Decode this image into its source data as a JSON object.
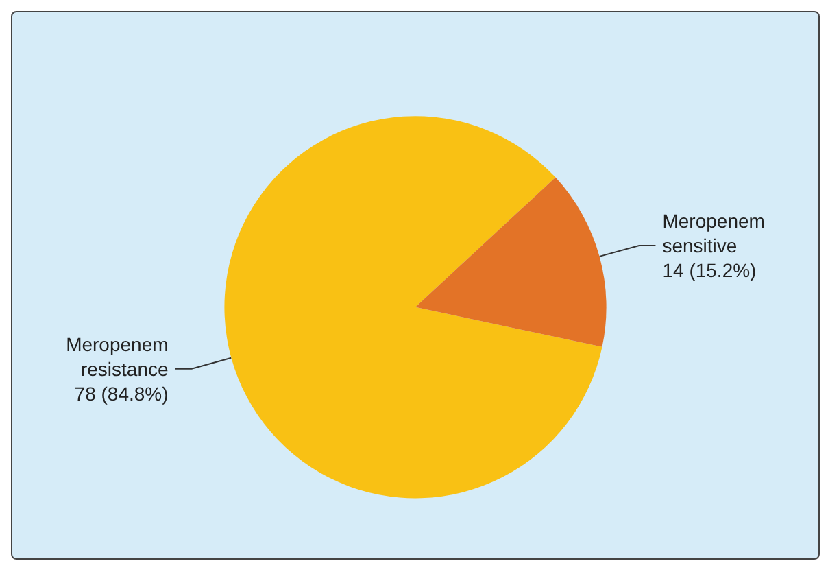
{
  "chart_data": {
    "type": "pie",
    "categories": [
      "Meropenem resistance",
      "Meropenem sensitive"
    ],
    "values": [
      78,
      14
    ],
    "colors": [
      "#f9c114",
      "#e37327"
    ],
    "value_labels": [
      "78 (84.8%)",
      "14 (15.2%)"
    ],
    "legend": false
  }
}
